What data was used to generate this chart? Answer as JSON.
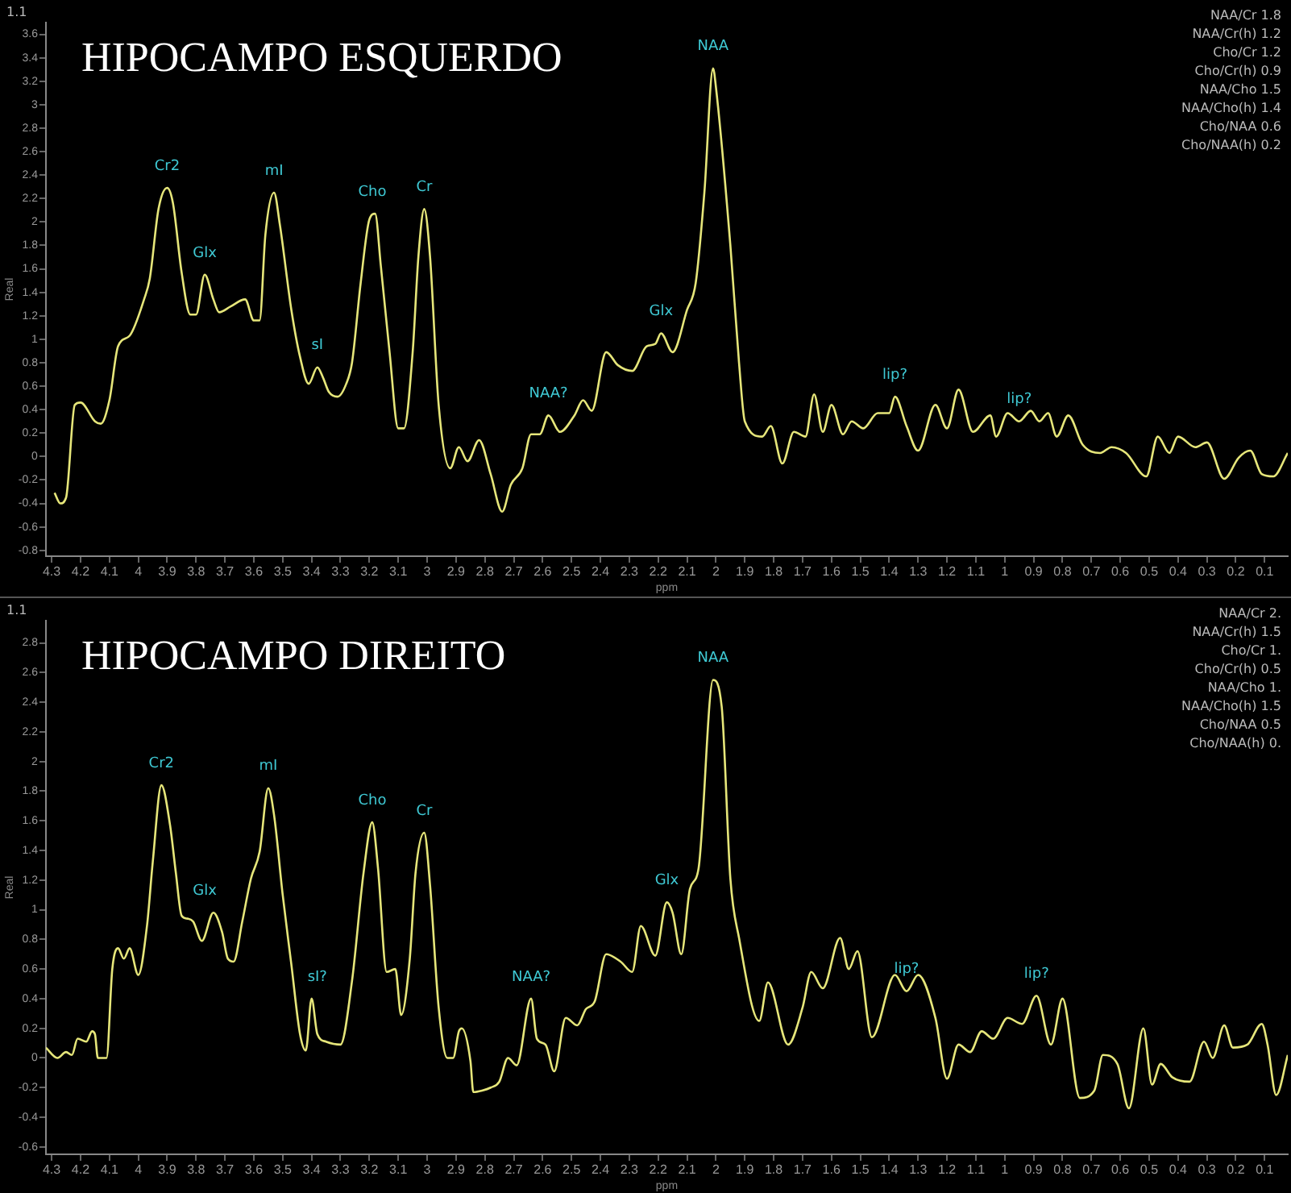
{
  "chart_data": [
    {
      "type": "line",
      "title": "HIPOCAMPO ESQUERDO",
      "xlabel": "ppm",
      "ylabel": "Real",
      "legend": false,
      "grid": false,
      "xlim": [
        4.32,
        0.02
      ],
      "xticks": [
        4.3,
        4.2,
        4.1,
        4,
        3.9,
        3.8,
        3.7,
        3.6,
        3.5,
        3.4,
        3.3,
        3.2,
        3.1,
        3,
        2.9,
        2.8,
        2.7,
        2.6,
        2.5,
        2.4,
        2.3,
        2.2,
        2.1,
        2,
        1.9,
        1.8,
        1.7,
        1.6,
        1.5,
        1.4,
        1.3,
        1.2,
        1.1,
        1,
        0.9,
        0.8,
        0.7,
        0.6,
        0.5,
        0.4,
        0.3,
        0.2,
        0.1
      ],
      "ylim": [
        -0.85,
        3.7
      ],
      "yticks": [
        -0.8,
        -0.6,
        -0.4,
        -0.2,
        0,
        0.2,
        0.4,
        0.6,
        0.8,
        1,
        1.2,
        1.4,
        1.6,
        1.8,
        2,
        2.2,
        2.4,
        2.6,
        2.8,
        3,
        3.2,
        3.4,
        3.6
      ],
      "series": [
        {
          "color": "#e6e67a",
          "x": [
            4.29,
            4.27,
            4.25,
            4.22,
            4.2,
            4.15,
            4.13,
            4.1,
            4.07,
            4.03,
            3.98,
            3.96,
            3.93,
            3.9,
            3.88,
            3.85,
            3.82,
            3.8,
            3.77,
            3.74,
            3.72,
            3.68,
            3.63,
            3.6,
            3.58,
            3.56,
            3.53,
            3.51,
            3.47,
            3.44,
            3.41,
            3.38,
            3.36,
            3.34,
            3.31,
            3.28,
            3.26,
            3.23,
            3.2,
            3.18,
            3.16,
            3.13,
            3.1,
            3.08,
            3.05,
            3.03,
            3.01,
            2.99,
            2.96,
            2.92,
            2.89,
            2.86,
            2.82,
            2.78,
            2.74,
            2.71,
            2.67,
            2.64,
            2.61,
            2.58,
            2.54,
            2.49,
            2.46,
            2.43,
            2.38,
            2.34,
            2.29,
            2.24,
            2.21,
            2.19,
            2.15,
            2.1,
            2.07,
            2.04,
            2.01,
            2,
            1.95,
            1.92,
            1.9,
            1.84,
            1.81,
            1.77,
            1.73,
            1.69,
            1.66,
            1.63,
            1.6,
            1.56,
            1.53,
            1.49,
            1.44,
            1.4,
            1.38,
            1.34,
            1.3,
            1.24,
            1.2,
            1.16,
            1.11,
            1.05,
            1.03,
            0.99,
            0.95,
            0.91,
            0.88,
            0.85,
            0.82,
            0.78,
            0.73,
            0.67,
            0.63,
            0.58,
            0.51,
            0.47,
            0.43,
            0.4,
            0.34,
            0.3,
            0.24,
            0.19,
            0.15,
            0.11,
            0.07,
            0.02
          ],
          "values": [
            -0.31,
            -0.4,
            -0.35,
            0.44,
            0.46,
            0.3,
            0.28,
            0.48,
            0.94,
            1.03,
            1.34,
            1.52,
            2.11,
            2.29,
            2.16,
            1.57,
            1.21,
            1.21,
            1.55,
            1.34,
            1.23,
            1.28,
            1.34,
            1.16,
            1.16,
            1.89,
            2.25,
            1.98,
            1.25,
            0.85,
            0.62,
            0.76,
            0.67,
            0.55,
            0.51,
            0.62,
            0.8,
            1.48,
            2.02,
            2.07,
            1.62,
            0.89,
            0.24,
            0.24,
            0.89,
            1.71,
            2.11,
            1.71,
            0.44,
            -0.1,
            0.08,
            -0.04,
            0.14,
            -0.15,
            -0.47,
            -0.24,
            -0.1,
            0.19,
            0.19,
            0.35,
            0.21,
            0.35,
            0.48,
            0.39,
            0.89,
            0.78,
            0.73,
            0.94,
            0.96,
            1.05,
            0.89,
            1.25,
            1.48,
            2.25,
            3.31,
            3.15,
            1.8,
            0.8,
            0.3,
            0.17,
            0.26,
            -0.06,
            0.21,
            0.17,
            0.53,
            0.21,
            0.44,
            0.19,
            0.3,
            0.24,
            0.37,
            0.37,
            0.51,
            0.26,
            0.05,
            0.44,
            0.24,
            0.57,
            0.21,
            0.35,
            0.17,
            0.37,
            0.3,
            0.39,
            0.3,
            0.37,
            0.17,
            0.35,
            0.1,
            0.03,
            0.08,
            0.03,
            -0.17,
            0.17,
            0.03,
            0.17,
            0.08,
            0.12,
            -0.19,
            -0.01,
            0.05,
            -0.15,
            -0.17,
            0.03
          ]
        }
      ],
      "annotations": [
        "1.1",
        "NAA/Cr 1.8",
        "NAA/Cr(h) 1.2",
        "Cho/Cr 1.2",
        "Cho/Cr(h) 0.9",
        "NAA/Cho 1.5",
        "NAA/Cho(h) 1.4",
        "Cho/NAA 0.6",
        "Cho/NAA(h) 0.2",
        {
          "text": "Cr2",
          "x": 3.9,
          "y": 2.29
        },
        {
          "text": "Glx",
          "x": 3.77,
          "y": 1.55
        },
        {
          "text": "mI",
          "x": 3.53,
          "y": 2.25
        },
        {
          "text": "sI",
          "x": 3.38,
          "y": 0.76
        },
        {
          "text": "Cho",
          "x": 3.19,
          "y": 2.07
        },
        {
          "text": "Cr",
          "x": 3.01,
          "y": 2.11
        },
        {
          "text": "NAA?",
          "x": 2.58,
          "y": 0.35
        },
        {
          "text": "Glx",
          "x": 2.19,
          "y": 1.05
        },
        {
          "text": "NAA",
          "x": 2.01,
          "y": 3.31
        },
        {
          "text": "lip?",
          "x": 1.38,
          "y": 0.51
        },
        {
          "text": "lip?",
          "x": 0.95,
          "y": 0.3
        }
      ]
    },
    {
      "type": "line",
      "title": "HIPOCAMPO DIREITO",
      "xlabel": "ppm",
      "ylabel": "Real",
      "legend": false,
      "grid": false,
      "xlim": [
        4.32,
        0.02
      ],
      "xticks": [
        4.3,
        4.2,
        4.1,
        4,
        3.9,
        3.8,
        3.7,
        3.6,
        3.5,
        3.4,
        3.3,
        3.2,
        3.1,
        3,
        2.9,
        2.8,
        2.7,
        2.6,
        2.5,
        2.4,
        2.3,
        2.2,
        2.1,
        2,
        1.9,
        1.8,
        1.7,
        1.6,
        1.5,
        1.4,
        1.3,
        1.2,
        1.1,
        1,
        0.9,
        0.8,
        0.7,
        0.6,
        0.5,
        0.4,
        0.3,
        0.2,
        0.1
      ],
      "ylim": [
        -0.65,
        2.95
      ],
      "yticks": [
        -0.6,
        -0.4,
        -0.2,
        0,
        0.2,
        0.4,
        0.6,
        0.8,
        1,
        1.2,
        1.4,
        1.6,
        1.8,
        2,
        2.2,
        2.4,
        2.6,
        2.8
      ],
      "series": [
        {
          "color": "#e6e67a",
          "x": [
            4.32,
            4.28,
            4.25,
            4.23,
            4.21,
            4.18,
            4.16,
            4.15,
            4.14,
            4.11,
            4.09,
            4.07,
            4.05,
            4.03,
            4,
            3.97,
            3.95,
            3.92,
            3.89,
            3.87,
            3.85,
            3.83,
            3.81,
            3.78,
            3.74,
            3.71,
            3.69,
            3.67,
            3.64,
            3.61,
            3.58,
            3.55,
            3.53,
            3.5,
            3.47,
            3.44,
            3.42,
            3.4,
            3.38,
            3.35,
            3.3,
            3.26,
            3.22,
            3.19,
            3.17,
            3.14,
            3.11,
            3.09,
            3.06,
            3.04,
            3.01,
            2.99,
            2.96,
            2.93,
            2.91,
            2.89,
            2.88,
            2.85,
            2.84,
            2.81,
            2.78,
            2.75,
            2.72,
            2.69,
            2.64,
            2.62,
            2.59,
            2.56,
            2.52,
            2.48,
            2.45,
            2.42,
            2.38,
            2.33,
            2.29,
            2.26,
            2.21,
            2.17,
            2.15,
            2.12,
            2.09,
            2.06,
            2.01,
            1.98,
            1.95,
            1.92,
            1.85,
            1.82,
            1.75,
            1.7,
            1.67,
            1.63,
            1.57,
            1.54,
            1.51,
            1.46,
            1.38,
            1.34,
            1.3,
            1.24,
            1.2,
            1.16,
            1.12,
            1.08,
            1.04,
            0.99,
            0.94,
            0.89,
            0.84,
            0.8,
            0.74,
            0.69,
            0.66,
            0.61,
            0.57,
            0.52,
            0.49,
            0.46,
            0.42,
            0.36,
            0.31,
            0.28,
            0.24,
            0.21,
            0.16,
            0.11,
            0.09,
            0.06,
            0.02
          ],
          "values": [
            0.07,
            0,
            0.04,
            0.02,
            0.13,
            0.11,
            0.18,
            0.16,
            0,
            0,
            0.6,
            0.74,
            0.67,
            0.74,
            0.56,
            0.89,
            1.32,
            1.84,
            1.57,
            1.25,
            0.96,
            0.94,
            0.92,
            0.79,
            0.98,
            0.85,
            0.67,
            0.65,
            0.92,
            1.21,
            1.39,
            1.82,
            1.64,
            1.1,
            0.63,
            0.16,
            0.05,
            0.4,
            0.16,
            0.11,
            0.09,
            0.52,
            1.25,
            1.59,
            1.28,
            0.58,
            0.6,
            0.29,
            0.67,
            1.25,
            1.52,
            1.17,
            0.34,
            0,
            0,
            0.18,
            0.2,
            -0.02,
            -0.23,
            -0.22,
            -0.2,
            -0.16,
            0,
            -0.05,
            0.4,
            0.13,
            0.09,
            -0.09,
            0.27,
            0.22,
            0.33,
            0.38,
            0.7,
            0.65,
            0.58,
            0.89,
            0.69,
            1.05,
            0.98,
            0.7,
            1.14,
            1.28,
            2.55,
            2.37,
            1.21,
            0.81,
            0.25,
            0.51,
            0.09,
            0.34,
            0.58,
            0.47,
            0.81,
            0.6,
            0.72,
            0.14,
            0.56,
            0.45,
            0.56,
            0.27,
            -0.14,
            0.09,
            0.04,
            0.18,
            0.13,
            0.27,
            0.23,
            0.42,
            0.09,
            0.4,
            -0.27,
            -0.22,
            0.02,
            -0.04,
            -0.34,
            0.2,
            -0.18,
            -0.04,
            -0.13,
            -0.16,
            0.11,
            0,
            0.22,
            0.07,
            0.09,
            0.23,
            0.09,
            -0.25,
            0.02
          ]
        }
      ],
      "annotations": [
        "1.1",
        "NAA/Cr 2.",
        "NAA/Cr(h) 1.5",
        "Cho/Cr 1.",
        "Cho/Cr(h) 0.5",
        "NAA/Cho 1.",
        "NAA/Cho(h) 1.5",
        "Cho/NAA 0.5",
        "Cho/NAA(h) 0.",
        {
          "text": "Cr2",
          "x": 3.92,
          "y": 1.84
        },
        {
          "text": "Glx",
          "x": 3.77,
          "y": 0.98
        },
        {
          "text": "mI",
          "x": 3.55,
          "y": 1.82
        },
        {
          "text": "sI?",
          "x": 3.38,
          "y": 0.4
        },
        {
          "text": "Cho",
          "x": 3.19,
          "y": 1.59
        },
        {
          "text": "Cr",
          "x": 3.01,
          "y": 1.52
        },
        {
          "text": "NAA?",
          "x": 2.64,
          "y": 0.4
        },
        {
          "text": "Glx",
          "x": 2.17,
          "y": 1.05
        },
        {
          "text": "NAA",
          "x": 2.01,
          "y": 2.55
        },
        {
          "text": "lip?",
          "x": 1.34,
          "y": 0.45
        },
        {
          "text": "lip?",
          "x": 0.89,
          "y": 0.42
        }
      ]
    }
  ]
}
